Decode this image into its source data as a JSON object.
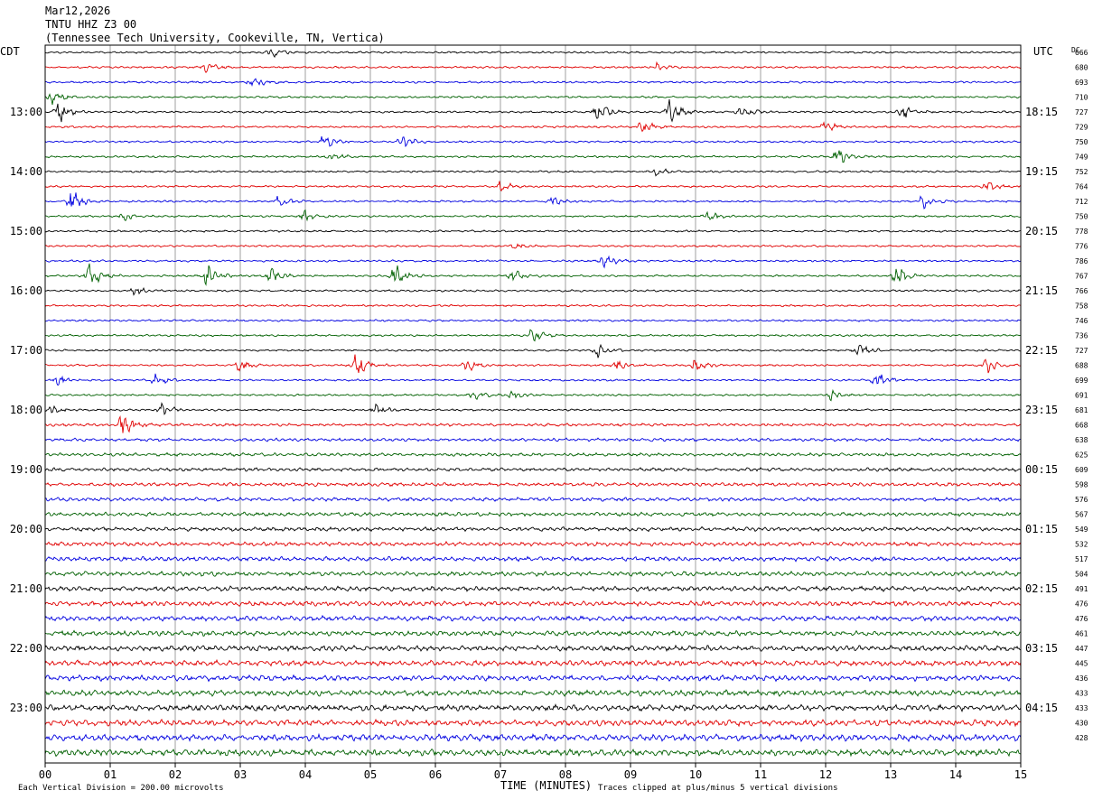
{
  "header": {
    "date": "Mar12,2026",
    "station": "TNTU HHZ Z3 00",
    "location": "(Tennessee Tech University, Cookeville, TN, Vertica)"
  },
  "labels": {
    "left_tz": "CDT",
    "right_tz": "UTC",
    "dc": "DC"
  },
  "footer": {
    "scale": "Each Vertical Division =  200.00 microvolts",
    "xlabel": "TIME (MINUTES)",
    "clip_note": "Traces clipped at plus/minus 5 vertical divisions"
  },
  "colors": {
    "traces": [
      "#000000",
      "#e00000",
      "#0000e0",
      "#006000"
    ],
    "grid": "#888888"
  },
  "chart_data": {
    "type": "line",
    "x_ticks": [
      "00",
      "01",
      "02",
      "03",
      "04",
      "05",
      "06",
      "07",
      "08",
      "09",
      "10",
      "11",
      "12",
      "13",
      "14",
      "15"
    ],
    "xlim": [
      0,
      15
    ],
    "rows": 48,
    "left_hour_labels": [
      "13:00",
      "14:00",
      "15:00",
      "16:00",
      "17:00",
      "18:00",
      "19:00",
      "20:00",
      "21:00",
      "22:00",
      "23:00"
    ],
    "right_hour_labels": [
      "18:15",
      "19:15",
      "20:15",
      "21:15",
      "22:15",
      "23:15",
      "00:15",
      "01:15",
      "02:15",
      "03:15",
      "04:15"
    ],
    "dc_values": [
      "666",
      "680",
      "693",
      "710",
      "727",
      "729",
      "750",
      "749",
      "752",
      "764",
      "712",
      "750",
      "778",
      "776",
      "786",
      "767",
      "766",
      "758",
      "746",
      "736",
      "727",
      "688",
      "699",
      "691",
      "681",
      "668",
      "638",
      "625",
      "609",
      "598",
      "576",
      "567",
      "549",
      "532",
      "517",
      "504",
      "491",
      "476",
      "476",
      "461",
      "447",
      "445",
      "436",
      "433",
      "433",
      "430",
      "428"
    ],
    "events": [
      {
        "row": 0,
        "minute": 3.5,
        "amp": 6
      },
      {
        "row": 1,
        "minute": 2.5,
        "amp": 6
      },
      {
        "row": 1,
        "minute": 9.4,
        "amp": 5
      },
      {
        "row": 2,
        "minute": 3.2,
        "amp": 7
      },
      {
        "row": 3,
        "minute": 0.1,
        "amp": 10
      },
      {
        "row": 4,
        "minute": 0.2,
        "amp": 14
      },
      {
        "row": 4,
        "minute": 8.5,
        "amp": 14
      },
      {
        "row": 4,
        "minute": 9.6,
        "amp": 14
      },
      {
        "row": 4,
        "minute": 10.7,
        "amp": 8
      },
      {
        "row": 4,
        "minute": 13.2,
        "amp": 8
      },
      {
        "row": 5,
        "minute": 9.2,
        "amp": 8
      },
      {
        "row": 5,
        "minute": 12.0,
        "amp": 8
      },
      {
        "row": 6,
        "minute": 4.3,
        "amp": 8
      },
      {
        "row": 6,
        "minute": 5.5,
        "amp": 8
      },
      {
        "row": 7,
        "minute": 4.4,
        "amp": 6
      },
      {
        "row": 7,
        "minute": 12.2,
        "amp": 10
      },
      {
        "row": 8,
        "minute": 9.4,
        "amp": 5
      },
      {
        "row": 9,
        "minute": 7.0,
        "amp": 8
      },
      {
        "row": 9,
        "minute": 14.5,
        "amp": 6
      },
      {
        "row": 10,
        "minute": 0.4,
        "amp": 14
      },
      {
        "row": 10,
        "minute": 3.6,
        "amp": 8
      },
      {
        "row": 10,
        "minute": 7.8,
        "amp": 6
      },
      {
        "row": 10,
        "minute": 13.5,
        "amp": 8
      },
      {
        "row": 11,
        "minute": 1.2,
        "amp": 6
      },
      {
        "row": 11,
        "minute": 4.0,
        "amp": 6
      },
      {
        "row": 11,
        "minute": 10.2,
        "amp": 7
      },
      {
        "row": 13,
        "minute": 7.2,
        "amp": 5
      },
      {
        "row": 14,
        "minute": 8.6,
        "amp": 9
      },
      {
        "row": 15,
        "minute": 0.7,
        "amp": 14
      },
      {
        "row": 15,
        "minute": 2.5,
        "amp": 12
      },
      {
        "row": 15,
        "minute": 3.5,
        "amp": 10
      },
      {
        "row": 15,
        "minute": 5.4,
        "amp": 14
      },
      {
        "row": 15,
        "minute": 7.2,
        "amp": 8
      },
      {
        "row": 15,
        "minute": 13.1,
        "amp": 12
      },
      {
        "row": 16,
        "minute": 1.4,
        "amp": 5
      },
      {
        "row": 19,
        "minute": 7.5,
        "amp": 8
      },
      {
        "row": 20,
        "minute": 8.5,
        "amp": 9
      },
      {
        "row": 20,
        "minute": 12.5,
        "amp": 8
      },
      {
        "row": 21,
        "minute": 3.0,
        "amp": 7
      },
      {
        "row": 21,
        "minute": 4.8,
        "amp": 14
      },
      {
        "row": 21,
        "minute": 6.5,
        "amp": 8
      },
      {
        "row": 21,
        "minute": 8.8,
        "amp": 7
      },
      {
        "row": 21,
        "minute": 10.0,
        "amp": 9
      },
      {
        "row": 21,
        "minute": 14.5,
        "amp": 8
      },
      {
        "row": 22,
        "minute": 0.2,
        "amp": 6
      },
      {
        "row": 22,
        "minute": 1.7,
        "amp": 7
      },
      {
        "row": 22,
        "minute": 12.8,
        "amp": 10
      },
      {
        "row": 23,
        "minute": 6.6,
        "amp": 6
      },
      {
        "row": 23,
        "minute": 7.2,
        "amp": 6
      },
      {
        "row": 23,
        "minute": 12.1,
        "amp": 7
      },
      {
        "row": 24,
        "minute": 0.1,
        "amp": 7
      },
      {
        "row": 24,
        "minute": 1.8,
        "amp": 7
      },
      {
        "row": 24,
        "minute": 5.1,
        "amp": 7
      },
      {
        "row": 25,
        "minute": 1.2,
        "amp": 14
      }
    ]
  }
}
